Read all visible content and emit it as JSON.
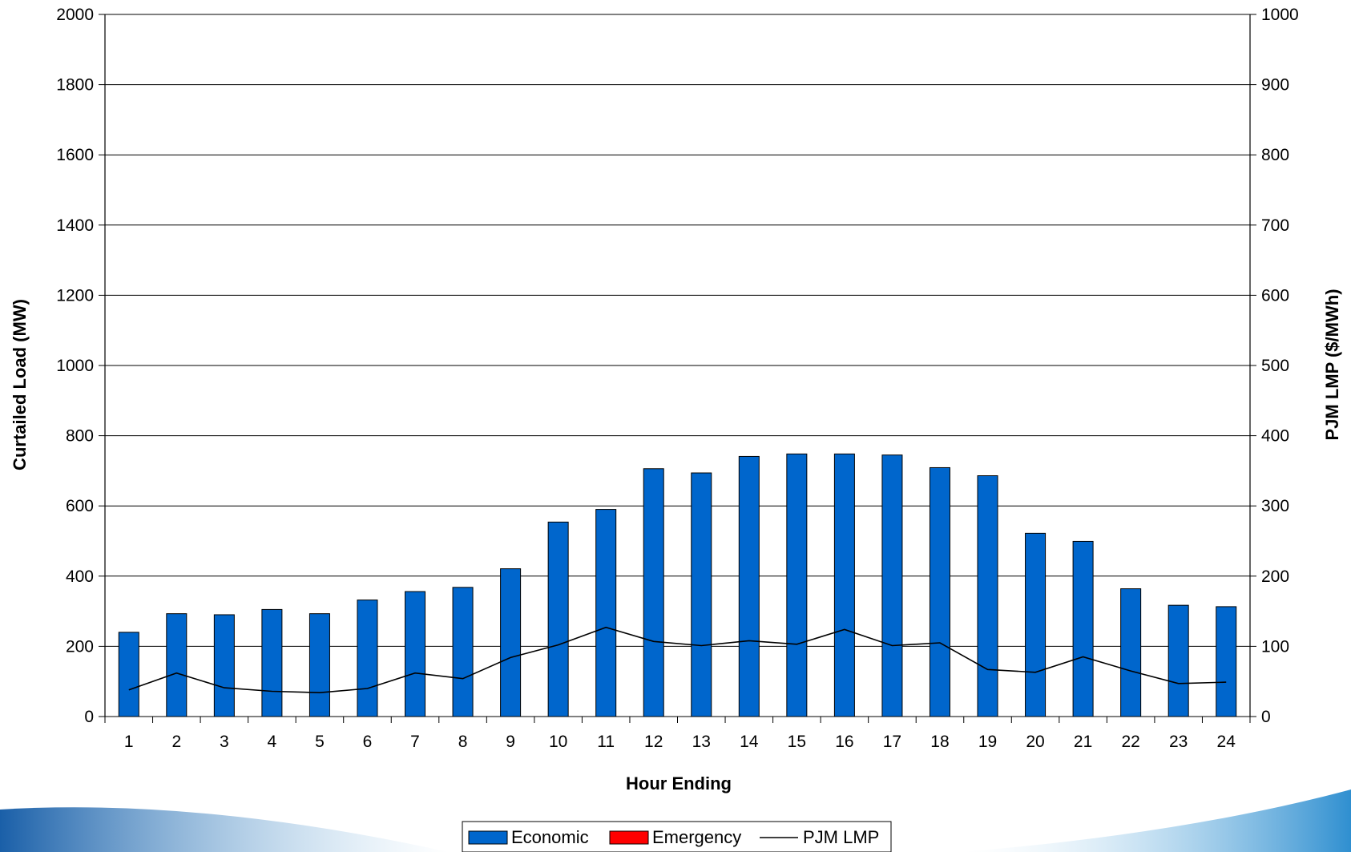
{
  "chart_data": {
    "type": "bar",
    "title": "",
    "xlabel": "Hour Ending",
    "ylabel": "Curtailed Load (MW)",
    "y2label": "PJM LMP ($/MWh)",
    "categories": [
      "1",
      "2",
      "3",
      "4",
      "5",
      "6",
      "7",
      "8",
      "9",
      "10",
      "11",
      "12",
      "13",
      "14",
      "15",
      "16",
      "17",
      "18",
      "19",
      "20",
      "21",
      "22",
      "23",
      "24"
    ],
    "ylim": [
      0,
      2000
    ],
    "y2lim": [
      0,
      1000
    ],
    "yticks": [
      0,
      200,
      400,
      600,
      800,
      1000,
      1200,
      1400,
      1600,
      1800,
      2000
    ],
    "y2ticks": [
      0,
      100,
      200,
      300,
      400,
      500,
      600,
      700,
      800,
      900,
      1000
    ],
    "grid": true,
    "legend_position": "bottom",
    "series": [
      {
        "name": "Economic",
        "kind": "bar",
        "axis": "left",
        "color": "#0066cc",
        "values": [
          240,
          293,
          290,
          305,
          293,
          332,
          356,
          368,
          421,
          554,
          590,
          706,
          694,
          741,
          748,
          748,
          745,
          709,
          686,
          522,
          499,
          364,
          317,
          313
        ]
      },
      {
        "name": "Emergency",
        "kind": "bar",
        "axis": "left",
        "color": "#ff0000",
        "values": [
          0,
          0,
          0,
          0,
          0,
          0,
          0,
          0,
          0,
          0,
          0,
          0,
          0,
          0,
          0,
          0,
          0,
          0,
          0,
          0,
          0,
          0,
          0,
          0
        ]
      },
      {
        "name": "PJM LMP",
        "kind": "line",
        "axis": "right",
        "color": "#000000",
        "values": [
          38,
          62,
          41,
          36,
          34,
          40,
          62,
          54,
          84,
          102,
          127,
          107,
          101,
          108,
          103,
          124,
          101,
          105,
          67,
          63,
          85,
          65,
          47,
          49
        ]
      }
    ]
  },
  "decoration": {
    "swoosh_colors": [
      "#1a5fa8",
      "#8fc3e6"
    ]
  }
}
